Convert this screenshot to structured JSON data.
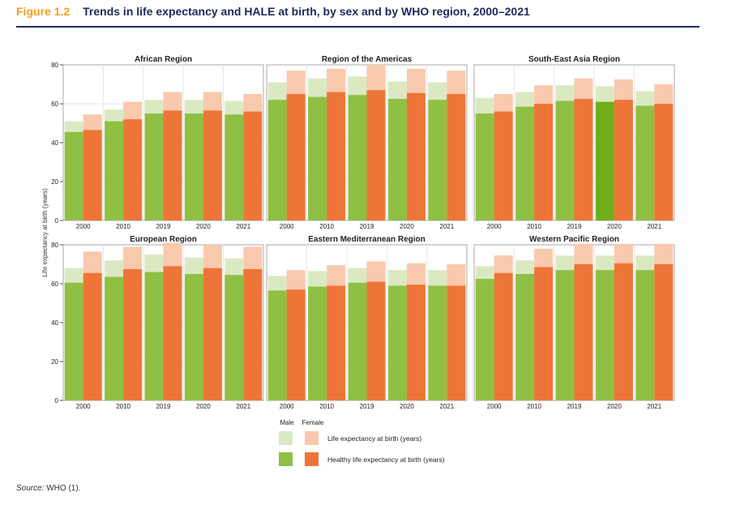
{
  "figure": {
    "label": "Figure 1.2",
    "title": "Trends in life expectancy and HALE at birth, by sex and by WHO region, 2000–2021"
  },
  "source": {
    "prefix": "Source:",
    "text": " WHO (1)."
  },
  "colors": {
    "male_le": "#dbe9c3",
    "female_le": "#f9c9ad",
    "male_hale": "#8fc044",
    "male_hale_highlight": "#6fae1a",
    "female_hale": "#ee7538",
    "panel_border": "#a8a8a8",
    "grid": "#e6e6e6"
  },
  "chart_data": {
    "type": "bar",
    "ylabel": "Life expectancy at birth (years)",
    "ylim": [
      0,
      80
    ],
    "yticks": [
      0,
      20,
      40,
      60,
      80
    ],
    "grid": true,
    "legend": {
      "placement": "bottom-center",
      "male_header": "Male",
      "female_header": "Female",
      "items": [
        {
          "key": "le",
          "label": "Life expectancy at birth (years)"
        },
        {
          "key": "hale",
          "label": "Healthy life expectancy at birth (years)"
        }
      ]
    },
    "categories": [
      "2000",
      "2010",
      "2019",
      "2020",
      "2021"
    ],
    "panels": [
      {
        "title": "African Region",
        "male_le": [
          51,
          57,
          62,
          62,
          61.5
        ],
        "female_le": [
          54.5,
          61,
          66,
          66,
          65
        ],
        "male_hale": [
          45.5,
          51,
          55,
          55,
          54.5
        ],
        "female_hale": [
          46.5,
          52,
          56.5,
          56.5,
          56
        ]
      },
      {
        "title": "Region of the Americas",
        "male_le": [
          71,
          73,
          74,
          71.5,
          71
        ],
        "female_le": [
          77,
          78,
          80,
          78,
          77
        ],
        "male_hale": [
          62,
          63.5,
          64.5,
          62.5,
          62
        ],
        "female_hale": [
          65,
          66,
          67,
          65.5,
          65
        ]
      },
      {
        "title": "South-East Asia Region",
        "male_le": [
          63,
          66,
          69.5,
          69,
          66.5
        ],
        "female_le": [
          65,
          69.5,
          73,
          72.5,
          70
        ],
        "male_hale": [
          55,
          58.5,
          61.5,
          61,
          59
        ],
        "female_hale": [
          56,
          60,
          62.5,
          62,
          60
        ]
      },
      {
        "title": "European Region",
        "male_le": [
          68,
          72,
          75,
          73.5,
          73
        ],
        "female_le": [
          76.5,
          79,
          81,
          80,
          79
        ],
        "male_hale": [
          60.5,
          63.5,
          66,
          65,
          64.5
        ],
        "female_hale": [
          65.5,
          67.5,
          69,
          68,
          67.5
        ]
      },
      {
        "title": "Eastern Mediterranean Region",
        "male_le": [
          64,
          66.5,
          68,
          67,
          67
        ],
        "female_le": [
          67,
          69.5,
          71.5,
          70.5,
          70
        ],
        "male_hale": [
          56.5,
          58.5,
          60.5,
          59,
          59
        ],
        "female_hale": [
          57,
          59,
          61,
          59.5,
          59
        ]
      },
      {
        "title": "Western Pacific Region",
        "male_le": [
          69,
          72,
          74.5,
          74.5,
          74.5
        ],
        "female_le": [
          74.5,
          78,
          80.5,
          80.5,
          80.5
        ],
        "male_hale": [
          62.5,
          65,
          67,
          67,
          67
        ],
        "female_hale": [
          65.5,
          68.5,
          70,
          70.5,
          70
        ]
      }
    ]
  }
}
